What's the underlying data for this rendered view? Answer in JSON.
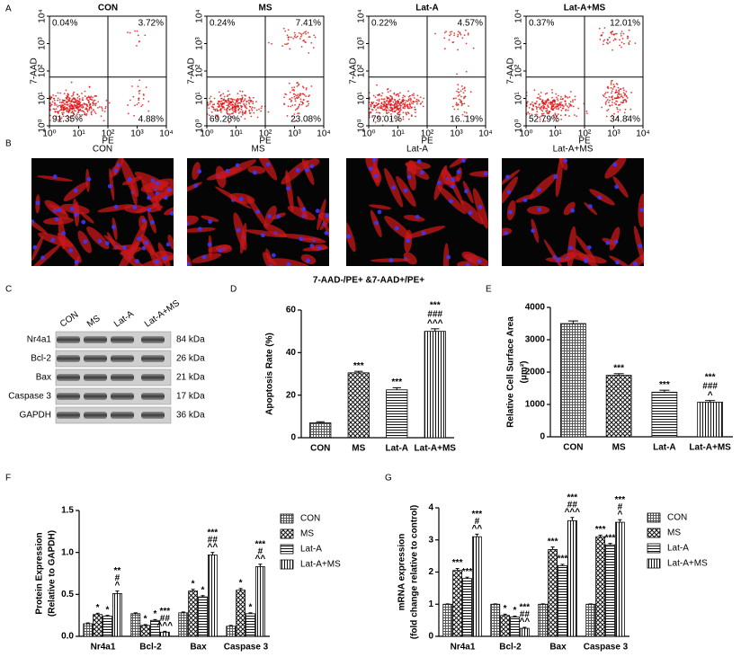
{
  "panel_labels": [
    "A",
    "B",
    "C",
    "D",
    "E",
    "F",
    "G"
  ],
  "flow": {
    "x_label": "PE",
    "y_label": "7-AAD",
    "log_scale": true,
    "xlim": [
      1,
      10000
    ],
    "ylim": [
      1,
      10000
    ],
    "gate_x": 100,
    "gate_y": 60,
    "ticks": [
      {
        "value": 1,
        "label": "10⁰"
      },
      {
        "value": 10,
        "label": "10¹"
      },
      {
        "value": 100,
        "label": "10²"
      },
      {
        "value": 1000,
        "label": "10³"
      },
      {
        "value": 10000,
        "label": "10⁴"
      }
    ],
    "plots": [
      {
        "title": "CON",
        "quadrants": [
          "0.04%",
          "3.72%",
          "91.35%",
          "4.88%"
        ]
      },
      {
        "title": "MS",
        "quadrants": [
          "0.24%",
          "7.41%",
          "69.28%",
          "23.08%"
        ]
      },
      {
        "title": "Lat-A",
        "quadrants": [
          "0.22%",
          "4.57%",
          "79.01%",
          "16..19%"
        ]
      },
      {
        "title": "Lat-A+MS",
        "quadrants": [
          "0.37%",
          "12.01%",
          "52.79%",
          "34.84%"
        ]
      }
    ]
  },
  "images": {
    "titles": [
      "CON",
      "MS",
      "Lat-A",
      "Lat-A+MS"
    ]
  },
  "blot": {
    "lanes": [
      "CON",
      "MS",
      "Lat-A",
      "Lat-A+MS"
    ],
    "rows": [
      {
        "protein": "Nr4a1",
        "size": "84 kDa"
      },
      {
        "protein": "Bcl-2",
        "size": "26 kDa"
      },
      {
        "protein": "Bax",
        "size": "21 kDa"
      },
      {
        "protein": "Caspase 3",
        "size": "17 kDa"
      },
      {
        "protein": "GAPDH",
        "size": "36 kDa"
      }
    ]
  },
  "chart_data": [
    {
      "type": "bar",
      "title": "7-AAD-/PE+ &7-AAD+/PE+",
      "y_label": [
        "Apoptosis Rate (%)"
      ],
      "categories": [
        "CON",
        "MS",
        "Lat-A",
        "Lat-A+MS"
      ],
      "values": [
        7,
        30.5,
        22.5,
        50
      ],
      "errors": [
        0.5,
        0.7,
        1,
        1.2
      ],
      "patterns": [
        "crosshatch",
        "checker",
        "horizontal",
        "vertical"
      ],
      "annotations": [
        [],
        [
          "***"
        ],
        [
          "***"
        ],
        [
          "***",
          "###",
          "^^^"
        ]
      ],
      "ylim": [
        0,
        60
      ],
      "yticks": [
        0,
        20,
        40,
        60
      ]
    },
    {
      "type": "bar",
      "y_label": [
        "Relative Cell Surface Area",
        "(μm²)"
      ],
      "categories": [
        "CON",
        "MS",
        "Lat-A",
        "Lat-A+MS"
      ],
      "values": [
        3500,
        1900,
        1380,
        1070
      ],
      "errors": [
        80,
        50,
        60,
        50
      ],
      "patterns": [
        "crosshatch",
        "checker",
        "horizontal",
        "vertical"
      ],
      "annotations": [
        [],
        [
          "***"
        ],
        [
          "***"
        ],
        [
          "***",
          "###",
          "^"
        ]
      ],
      "ylim": [
        0,
        4000
      ],
      "yticks": [
        0,
        1000,
        2000,
        3000,
        4000
      ]
    },
    {
      "type": "grouped-bar",
      "y_label": [
        "Protein Expression",
        "(Relative to GAPDH)"
      ],
      "categories": [
        "Nr4a1",
        "Bcl-2",
        "Bax",
        "Caspase 3"
      ],
      "series": [
        {
          "name": "CON",
          "pattern": "crosshatch",
          "values": [
            0.15,
            0.27,
            0.28,
            0.12
          ],
          "errors": [
            0.01,
            0.01,
            0.01,
            0.01
          ],
          "annotations": [
            [],
            [],
            [],
            []
          ]
        },
        {
          "name": "MS",
          "pattern": "checker",
          "values": [
            0.26,
            0.13,
            0.54,
            0.55
          ],
          "errors": [
            0.015,
            0.01,
            0.02,
            0.02
          ],
          "annotations": [
            [
              "*"
            ],
            [
              "*"
            ],
            [
              "*"
            ],
            [
              "*"
            ]
          ]
        },
        {
          "name": "Lat-A",
          "pattern": "horizontal",
          "values": [
            0.24,
            0.19,
            0.47,
            0.27
          ],
          "errors": [
            0.01,
            0.01,
            0.015,
            0.01
          ],
          "annotations": [
            [
              "*"
            ],
            [
              "*"
            ],
            [
              "*"
            ],
            [
              "*"
            ]
          ]
        },
        {
          "name": "Lat-A+MS",
          "pattern": "vertical",
          "values": [
            0.51,
            0.05,
            0.97,
            0.83
          ],
          "errors": [
            0.03,
            0.01,
            0.03,
            0.03
          ],
          "annotations": [
            [
              "**",
              "#",
              "^"
            ],
            [
              "***",
              "##",
              "^^^"
            ],
            [
              "***",
              "##",
              "^^"
            ],
            [
              "***",
              "#",
              "^^"
            ]
          ]
        }
      ],
      "ylim": [
        0,
        1.5
      ],
      "yticks": [
        {
          "value": 0,
          "label": "0.0"
        },
        {
          "value": 0.5,
          "label": "0.5"
        },
        {
          "value": 1,
          "label": "1.0"
        },
        {
          "value": 1.5,
          "label": "1.5"
        }
      ]
    },
    {
      "type": "grouped-bar",
      "y_label": [
        "mRNA expression",
        "(fold change relative to control)"
      ],
      "categories": [
        "Nr4a1",
        "Bcl-2",
        "Bax",
        "Caspase 3"
      ],
      "series": [
        {
          "name": "CON",
          "pattern": "crosshatch",
          "values": [
            1,
            1,
            1,
            1
          ],
          "errors": [
            0.01,
            0.01,
            0.01,
            0.01
          ],
          "annotations": [
            [],
            [],
            [],
            []
          ]
        },
        {
          "name": "MS",
          "pattern": "checker",
          "values": [
            2.05,
            0.65,
            2.7,
            3.1
          ],
          "errors": [
            0.06,
            0.04,
            0.08,
            0.05
          ],
          "annotations": [
            [
              "***"
            ],
            [
              "*"
            ],
            [
              "***"
            ],
            [
              "***"
            ]
          ]
        },
        {
          "name": "Lat-A",
          "pattern": "horizontal",
          "values": [
            1.8,
            0.6,
            2.2,
            2.85
          ],
          "errors": [
            0.04,
            0.03,
            0.04,
            0.04
          ],
          "annotations": [
            [
              "***"
            ],
            [
              "*"
            ],
            [
              "***"
            ],
            [
              "***"
            ]
          ]
        },
        {
          "name": "Lat-A+MS",
          "pattern": "vertical",
          "values": [
            3.1,
            0.25,
            3.6,
            3.55
          ],
          "errors": [
            0.08,
            0.03,
            0.1,
            0.08
          ],
          "annotations": [
            [
              "***",
              "#",
              "^^"
            ],
            [
              "***",
              "##",
              "^^"
            ],
            [
              "***",
              "##",
              "^^^"
            ],
            [
              "***",
              "#",
              "^"
            ]
          ]
        }
      ],
      "ylim": [
        0,
        4
      ],
      "yticks": [
        0,
        1,
        2,
        3,
        4
      ]
    }
  ]
}
